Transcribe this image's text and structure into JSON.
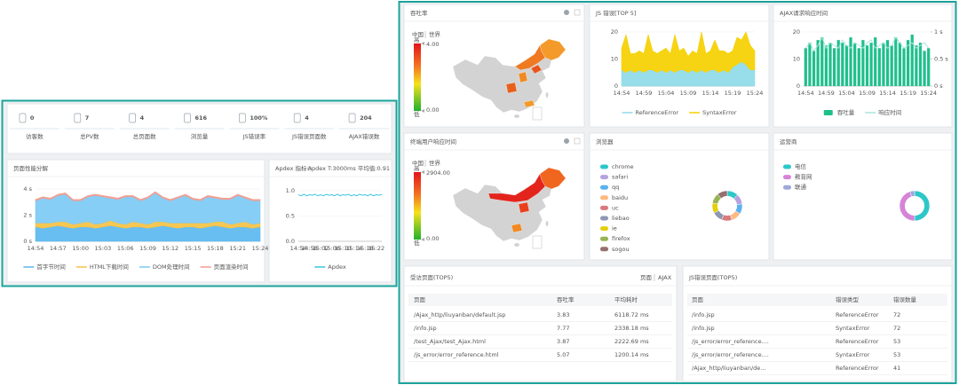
{
  "stats": [
    {
      "value": 0,
      "label": "访客数"
    },
    {
      "value": 7,
      "label": "总PV数"
    },
    {
      "value": 4,
      "label": "总页面数"
    },
    {
      "value": 616,
      "label": "浏览量"
    },
    {
      "value": "100%",
      "label": "JS错误率"
    },
    {
      "value": 4,
      "label": "JS错误页面数"
    },
    {
      "value": 204,
      "label": "AJAX错误数"
    }
  ],
  "maps": [
    {
      "title": "吞吐率",
      "tabs": [
        "中国",
        "世界"
      ],
      "high": "高",
      "low": "低",
      "max": "4.00",
      "min": "0.00"
    },
    {
      "title": "终端用户响应时间",
      "tabs": [
        "中国",
        "世界"
      ],
      "high": "高",
      "low": "低",
      "max": "2904.00",
      "min": "0.00"
    }
  ],
  "tables": [
    {
      "title": "受访页面(TOP5)",
      "tabs": [
        "页面",
        "AJAX"
      ],
      "columns": [
        "页面",
        "吞吐率",
        "平均耗时"
      ],
      "rows": [
        [
          "/Ajax_http/liuyanban/default.jsp",
          3.83,
          "6118.72 ms"
        ],
        [
          "/info.jsp",
          7.77,
          "2338.18 ms"
        ],
        [
          "/test_Ajax/test_Ajax.html",
          3.87,
          "2222.69 ms"
        ],
        [
          "/js_error/error_reference.html",
          5.07,
          "1200.14 ms"
        ]
      ]
    },
    {
      "title": "JS错误页面(TOP5)",
      "columns": [
        "页面",
        "错误类型",
        "错误数量"
      ],
      "rows": [
        [
          "/info.jsp",
          "ReferenceError",
          72
        ],
        [
          "/info.jsp",
          "SyntaxError",
          72
        ],
        [
          "/js_error/error_reference....",
          "ReferenceError",
          53
        ],
        [
          "/js_error/error_reference....",
          "SyntaxError",
          53
        ],
        [
          "/Ajax_http/liuyanban/de...",
          "ReferenceError",
          41
        ]
      ]
    }
  ],
  "chart_data": [
    {
      "type": "area",
      "title": "页面性能分解",
      "stacked": true,
      "grid": true,
      "legend": "bottom",
      "categories": [
        "14:54",
        null,
        null,
        "14:57",
        null,
        null,
        "15:00",
        null,
        null,
        "15:03",
        null,
        null,
        "15:06",
        null,
        null,
        "15:09",
        null,
        null,
        "15:12",
        null,
        null,
        "15:15",
        null,
        null,
        "15:18",
        null,
        null,
        "15:21",
        null,
        null,
        "15:24"
      ],
      "series": [
        {
          "name": "首字节时间",
          "color": "#5bb8ef",
          "values": [
            1.1,
            1.0,
            1.1,
            1.2,
            1.1,
            1.0,
            1.1,
            1.1,
            1.0,
            1.1,
            1.2,
            1.1,
            1.0,
            1.1,
            1.1,
            1.0,
            1.1,
            1.2,
            1.1,
            1.0,
            1.1,
            1.1,
            1.0,
            1.1,
            1.2,
            1.1,
            1.0,
            1.1,
            1.1,
            1.0,
            1.1
          ]
        },
        {
          "name": "HTML下载时间",
          "color": "#f5c244",
          "values": [
            0.3,
            0.4,
            0.3,
            0.3,
            0.4,
            0.3,
            0.3,
            0.4,
            0.3,
            0.3,
            0.4,
            0.3,
            0.3,
            0.4,
            0.3,
            0.3,
            0.4,
            0.3,
            0.3,
            0.4,
            0.3,
            0.3,
            0.4,
            0.3,
            0.3,
            0.4,
            0.3,
            0.3,
            0.4,
            0.3,
            0.3
          ]
        },
        {
          "name": "DOM处理时间",
          "color": "#7ccaf5",
          "values": [
            1.7,
            1.9,
            1.8,
            2.0,
            2.1,
            1.8,
            1.7,
            1.9,
            2.2,
            2.0,
            1.7,
            1.8,
            2.1,
            1.9,
            1.7,
            2.0,
            2.2,
            1.8,
            1.7,
            1.9,
            2.1,
            1.8,
            1.7,
            2.0,
            1.8,
            1.7,
            1.9,
            2.1,
            1.8,
            1.8,
            1.7
          ]
        },
        {
          "name": "页面渲染时间",
          "color": "#f29b8f",
          "values": [
            0.1,
            0.1,
            0.1,
            0.1,
            0.1,
            0.1,
            0.1,
            0.1,
            0.1,
            0.1,
            0.1,
            0.1,
            0.1,
            0.1,
            0.1,
            0.1,
            0.1,
            0.1,
            0.1,
            0.1,
            0.1,
            0.1,
            0.1,
            0.1,
            0.1,
            0.1,
            0.1,
            0.1,
            0.1,
            0.1,
            0.1
          ]
        }
      ],
      "ylim": [
        0,
        4
      ],
      "yticks": [
        {
          "value": 0,
          "label": "0 s"
        },
        {
          "value": 2,
          "label": "2 s"
        },
        {
          "value": 4,
          "label": "4 s"
        }
      ]
    },
    {
      "type": "line",
      "title": "Apdex 指标",
      "subtitle": "Apdex T:3000ms 平均值:0.91",
      "grid": true,
      "legend": "bottom",
      "categories": [
        "14:54",
        null,
        null,
        null,
        "14:58",
        null,
        null,
        null,
        "15:02",
        null,
        null,
        null,
        "15:06",
        null,
        null,
        null,
        "15:10",
        null,
        null,
        null,
        "15:14",
        null,
        null,
        null,
        "15:18",
        null,
        null,
        null,
        "15:22",
        null,
        null
      ],
      "series": [
        {
          "name": "Apdex",
          "color": "#3cc4e0",
          "values": [
            0.92,
            0.9,
            0.93,
            0.9,
            0.92,
            0.91,
            0.93,
            0.9,
            0.92,
            0.9,
            0.93,
            0.91,
            0.92,
            0.9,
            0.93,
            0.9,
            0.92,
            0.91,
            0.93,
            0.9,
            0.92,
            0.9,
            0.93,
            0.91,
            0.92,
            0.9,
            0.93,
            0.9,
            0.92,
            0.91,
            0.93
          ]
        }
      ],
      "ylim": [
        0,
        1
      ],
      "yticks": [
        {
          "value": 0,
          "label": "0.0"
        },
        {
          "value": 0.5,
          "label": "0.5"
        },
        {
          "value": 1,
          "label": "1.0"
        }
      ]
    },
    {
      "type": "area",
      "title": "JS 错误[TOP 5]",
      "stacked": true,
      "grid": true,
      "legend": "bottom",
      "categories": [
        "14:54",
        null,
        null,
        null,
        null,
        "14:59",
        null,
        null,
        null,
        null,
        "15:04",
        null,
        null,
        null,
        null,
        "15:09",
        null,
        null,
        null,
        null,
        "15:14",
        null,
        null,
        null,
        null,
        "15:19",
        null,
        null,
        null,
        null,
        "15:24"
      ],
      "series": [
        {
          "name": "ReferenceError",
          "color": "#8fdbe8",
          "values": [
            6,
            5,
            6,
            5,
            6,
            5,
            6,
            6,
            5,
            6,
            5,
            6,
            5,
            6,
            6,
            5,
            6,
            5,
            6,
            5,
            6,
            6,
            5,
            6,
            5,
            7,
            8,
            9,
            8,
            6,
            6
          ]
        },
        {
          "name": "SyntaxError",
          "color": "#f5d000",
          "values": [
            8,
            14,
            6,
            7,
            7,
            7,
            13,
            7,
            7,
            7,
            9,
            6,
            14,
            7,
            8,
            6,
            7,
            7,
            14,
            7,
            7,
            11,
            8,
            7,
            7,
            6,
            10,
            8,
            12,
            9,
            7
          ]
        }
      ],
      "ylim": [
        0,
        20
      ],
      "yticks": [
        0,
        10,
        20
      ]
    },
    {
      "type": "bar",
      "title": "AJAX请求响应时间",
      "grid": true,
      "legend": "bottom",
      "categories": [
        "14:54",
        null,
        null,
        null,
        null,
        "14:59",
        null,
        null,
        null,
        null,
        "15:04",
        null,
        null,
        null,
        null,
        "15:09",
        null,
        null,
        null,
        null,
        "15:14",
        null,
        null,
        null,
        null,
        "15:19",
        null,
        null,
        null,
        null,
        "15:24"
      ],
      "series": [
        {
          "name": "吞吐量",
          "color": "#1fbf8c",
          "values": [
            14,
            16,
            13,
            17,
            18,
            15,
            16,
            14,
            17,
            16,
            15,
            18,
            16,
            14,
            17,
            15,
            16,
            18,
            14,
            16,
            17,
            15,
            18,
            16,
            14,
            17,
            19,
            15,
            16,
            13,
            14
          ]
        },
        {
          "name": "响应时间",
          "color": "#a8e6dc",
          "type": "line",
          "axis": "y2",
          "values": [
            0.7,
            0.8,
            0.65,
            0.75,
            0.9,
            0.7,
            0.8,
            0.75,
            0.7,
            0.85,
            0.75,
            0.7,
            0.8,
            0.75,
            0.7,
            0.8,
            0.85,
            0.7,
            0.75,
            0.8,
            0.7,
            0.75,
            0.9,
            0.8,
            0.7,
            0.75,
            0.8,
            0.7,
            0.75,
            0.8,
            0.7
          ]
        }
      ],
      "ylim": [
        0,
        20
      ],
      "yticks": [
        0,
        10,
        20
      ],
      "y2lim": [
        0,
        1
      ],
      "y2ticks": [
        {
          "value": 0,
          "label": "0 s"
        },
        {
          "value": 0.5,
          "label": "0.5 s"
        },
        {
          "value": 1,
          "label": "1 s"
        }
      ]
    },
    {
      "type": "pie",
      "title": "浏览器",
      "donut": true,
      "legend": "left",
      "categories": [
        "chrome",
        "safari",
        "qq",
        "baidu",
        "uc",
        "liebao",
        "ie",
        "firefox",
        "sogou"
      ],
      "values": [
        12,
        11,
        11,
        11,
        11,
        11,
        11,
        11,
        11
      ],
      "colors": [
        "#2ec7c9",
        "#b6a2de",
        "#5ab1ef",
        "#ffb980",
        "#d87a80",
        "#8d98b3",
        "#e5cf0d",
        "#97b552",
        "#95706d"
      ]
    },
    {
      "type": "pie",
      "title": "运营商",
      "donut": true,
      "legend": "left",
      "categories": [
        "电信",
        "教育网",
        "联通"
      ],
      "values": [
        50,
        45,
        5
      ],
      "colors": [
        "#2ec7c9",
        "#d683d8",
        "#9fa8da"
      ]
    }
  ]
}
